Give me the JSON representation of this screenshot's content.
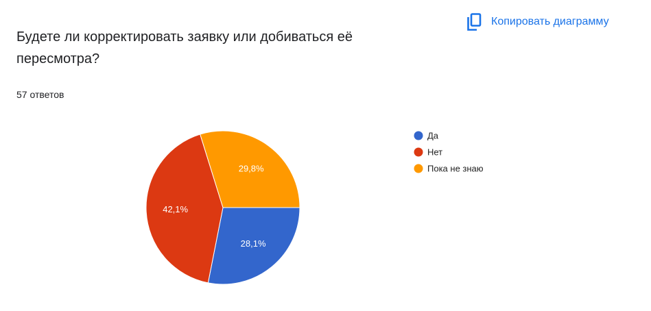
{
  "copy_button": "Копировать диаграмму",
  "chart_data": {
    "type": "pie",
    "title": "Будете ли корректировать заявку или добиваться её пересмотра?",
    "subtitle": "57 ответов",
    "categories": [
      "Да",
      "Нет",
      "Пока не знаю"
    ],
    "values": [
      28.1,
      42.1,
      29.8
    ],
    "value_labels": [
      "28,1%",
      "42,1%",
      "29,8%"
    ],
    "colors": [
      "#3366cc",
      "#dc3912",
      "#ff9900"
    ],
    "legend": "right"
  }
}
